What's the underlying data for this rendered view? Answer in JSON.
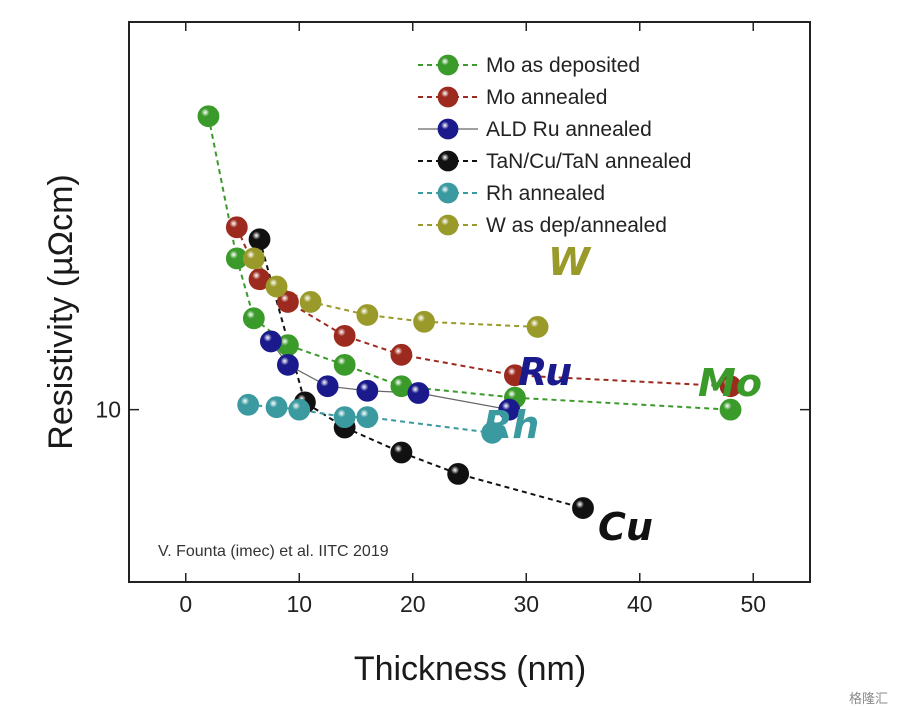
{
  "chart_data": {
    "type": "scatter",
    "xlabel": "Thickness (nm)",
    "ylabel": "Resistivity (µΩcm)",
    "xlim": [
      -5,
      55
    ],
    "ylim": [
      5,
      45
    ],
    "yscale": "log",
    "x_ticks": [
      0,
      10,
      20,
      30,
      40,
      50
    ],
    "y_ticks": [
      10
    ],
    "grid": false,
    "legend_position": "top-right",
    "annotation": "V. Founta (imec) et al. IITC 2019",
    "series": [
      {
        "name": "Mo as deposited",
        "label": "Mo",
        "color": "#3a9a2a",
        "line_style": "dashed",
        "x": [
          2,
          4.5,
          6,
          9,
          14,
          19,
          29,
          48
        ],
        "y": [
          33,
          18.5,
          14.5,
          13,
          12,
          11,
          10.5,
          10
        ]
      },
      {
        "name": "Mo annealed",
        "label": "",
        "color": "#9c2a1e",
        "line_style": "dashed",
        "x": [
          4.5,
          6.5,
          9,
          14,
          19,
          29,
          48
        ],
        "y": [
          21,
          17,
          15.5,
          13.5,
          12.5,
          11.5,
          11
        ]
      },
      {
        "name": "ALD Ru annealed",
        "label": "Ru",
        "color": "#1a1a8c",
        "line_style": "solid",
        "x": [
          7.5,
          9,
          12.5,
          16,
          20.5,
          28.5
        ],
        "y": [
          13.2,
          12,
          11,
          10.8,
          10.7,
          10
        ]
      },
      {
        "name": "TaN/Cu/TaN annealed",
        "label": "Cu",
        "color": "#111111",
        "line_style": "dashed",
        "x": [
          6.5,
          10.5,
          14,
          19,
          24,
          35
        ],
        "y": [
          20,
          10.3,
          9.3,
          8.4,
          7.7,
          6.7
        ]
      },
      {
        "name": "Rh annealed",
        "label": "Rh",
        "color": "#3a9aa0",
        "line_style": "dashed",
        "x": [
          5.5,
          8,
          10,
          14,
          16,
          27
        ],
        "y": [
          10.2,
          10.1,
          10,
          9.7,
          9.7,
          9.1
        ]
      },
      {
        "name": "W as dep/annealed",
        "label": "W",
        "color": "#9a9a2a",
        "line_style": "dashed",
        "x": [
          6,
          8,
          11,
          16,
          21,
          31
        ],
        "y": [
          18.5,
          16.5,
          15.5,
          14.7,
          14.3,
          14
        ]
      }
    ]
  },
  "watermark": "格隆汇"
}
